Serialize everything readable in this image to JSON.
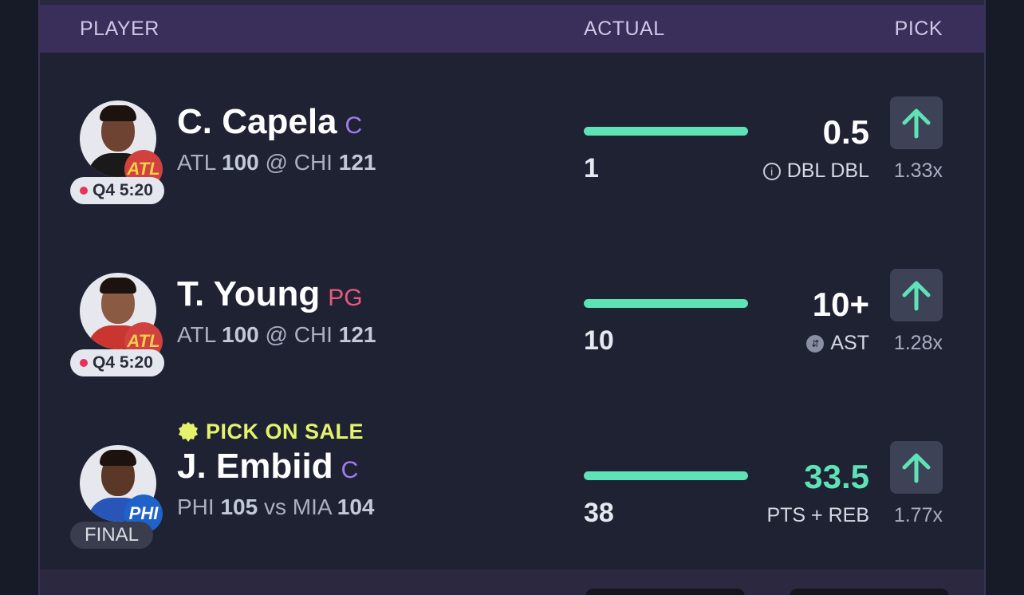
{
  "header": {
    "player": "PLAYER",
    "actual": "ACTUAL",
    "pick": "PICK"
  },
  "colors": {
    "accent_green": "#5ee2b6",
    "header_bg": "#3a2f5b",
    "sale_yellow": "#e4f36b"
  },
  "rows": [
    {
      "name": "C. Capela",
      "position": "C",
      "away_team": "ATL",
      "away_score": "100",
      "separator": "@",
      "home_team": "CHI",
      "home_score": "121",
      "badge": "ATL",
      "status": "Q4 5:20",
      "actual": "1",
      "line": "0.5",
      "stat": "DBL DBL",
      "stat_icon": "info-icon",
      "multiplier": "1.33x",
      "pick_icon": "arrow-up-icon"
    },
    {
      "name": "T. Young",
      "position": "PG",
      "away_team": "ATL",
      "away_score": "100",
      "separator": "@",
      "home_team": "CHI",
      "home_score": "121",
      "badge": "ATL",
      "status": "Q4 5:20",
      "actual": "10",
      "line": "10+",
      "stat": "AST",
      "stat_icon": "swap-icon",
      "multiplier": "1.28x",
      "pick_icon": "arrow-up-icon"
    },
    {
      "sale_label": "PICK ON SALE",
      "name": "J. Embiid",
      "position": "C",
      "away_team": "PHI",
      "away_score": "105",
      "separator": "vs",
      "home_team": "MIA",
      "home_score": "104",
      "badge": "PHI",
      "status": "FINAL",
      "actual": "38",
      "line": "33.5",
      "stat": "PTS + REB",
      "multiplier": "1.77x",
      "pick_icon": "arrow-up-icon"
    }
  ]
}
